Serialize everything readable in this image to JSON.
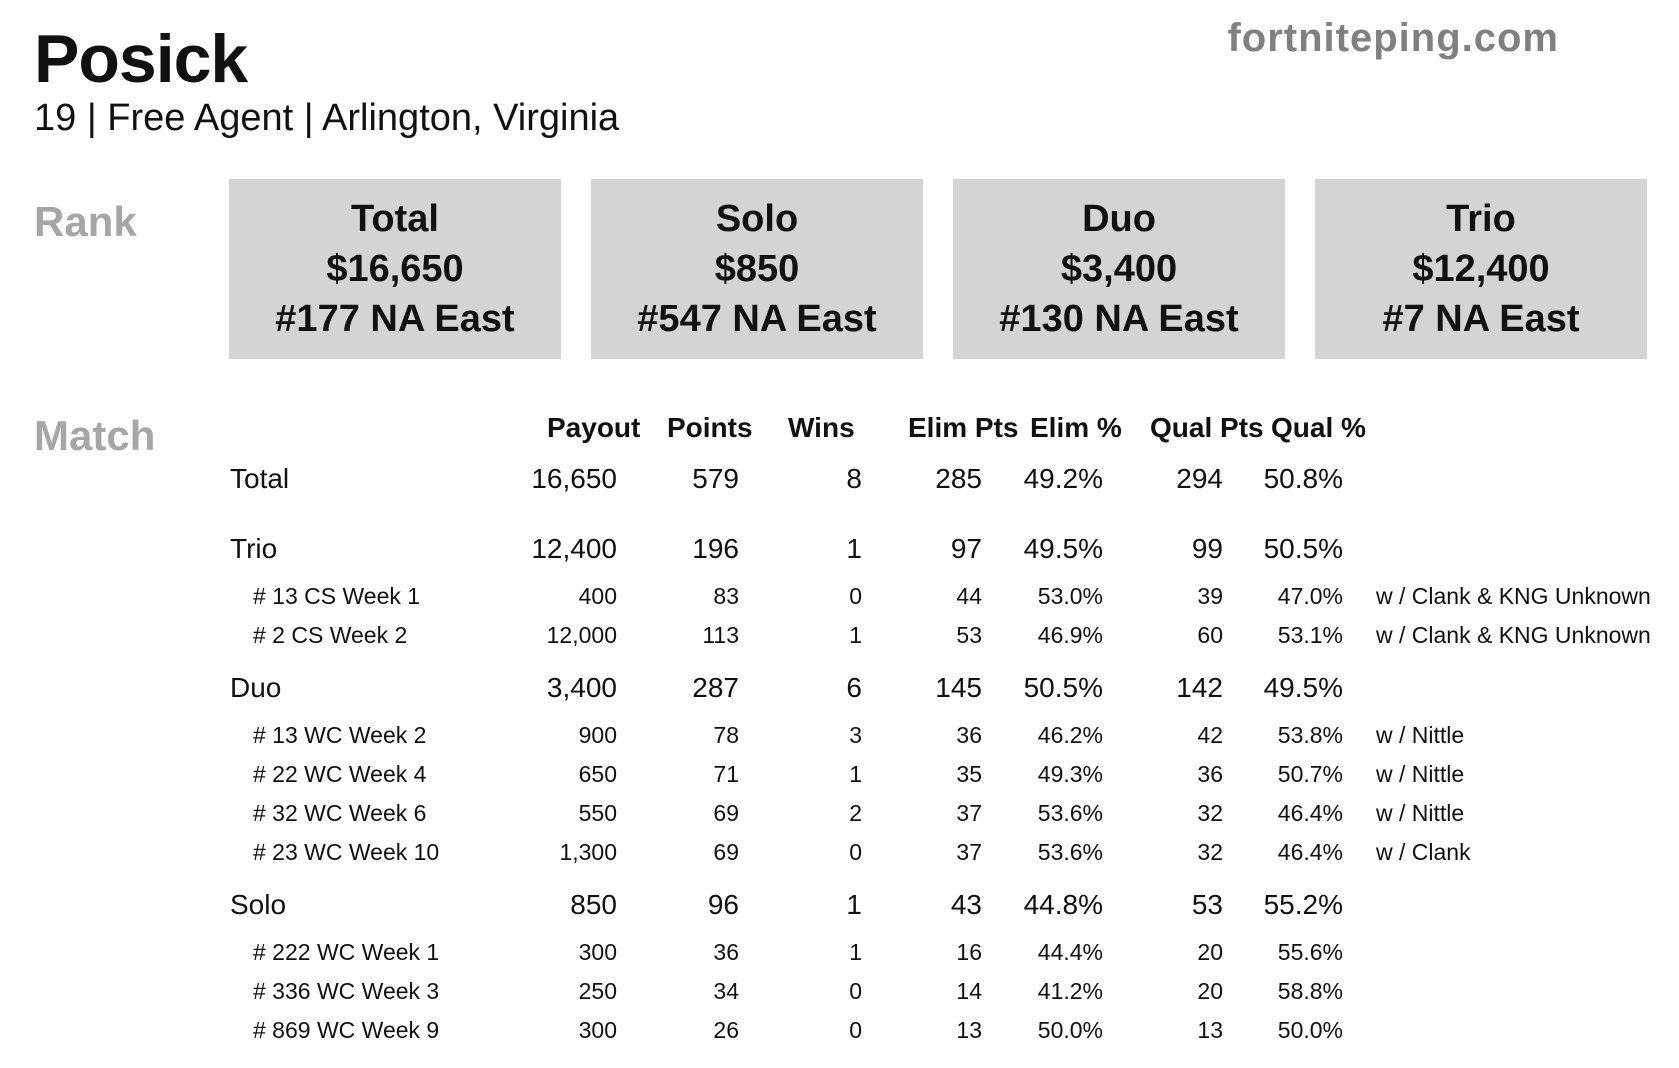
{
  "header": {
    "player_name": "Posick",
    "subtitle": "19 | Free Agent | Arlington, Virginia",
    "site": "fortniteping.com"
  },
  "sections": {
    "rank_label": "Rank",
    "match_label": "Match"
  },
  "rank_cards": [
    {
      "mode": "Total",
      "earnings": "$16,650",
      "rank": "#177 NA East"
    },
    {
      "mode": "Solo",
      "earnings": "$850",
      "rank": "#547 NA East"
    },
    {
      "mode": "Duo",
      "earnings": "$3,400",
      "rank": "#130 NA East"
    },
    {
      "mode": "Trio",
      "earnings": "$12,400",
      "rank": "#7 NA East"
    }
  ],
  "match_table": {
    "headers": {
      "payout": "Payout",
      "points": "Points",
      "wins": "Wins",
      "elim_pts": "Elim Pts",
      "elim_pct": "Elim %",
      "qual_pts": "Qual Pts",
      "qual_pct": "Qual %"
    },
    "rows": [
      {
        "label": "Total",
        "payout": "16,650",
        "points": "579",
        "wins": "8",
        "elim_pts": "285",
        "elim_pct": "49.2%",
        "qual_pts": "294",
        "qual_pct": "50.8%",
        "partner": ""
      },
      {
        "label": "Trio",
        "payout": "12,400",
        "points": "196",
        "wins": "1",
        "elim_pts": "97",
        "elim_pct": "49.5%",
        "qual_pts": "99",
        "qual_pct": "50.5%",
        "partner": ""
      },
      {
        "label": "# 13 CS Week 1",
        "payout": "400",
        "points": "83",
        "wins": "0",
        "elim_pts": "44",
        "elim_pct": "53.0%",
        "qual_pts": "39",
        "qual_pct": "47.0%",
        "partner": "w / Clank & KNG Unknown"
      },
      {
        "label": "# 2 CS Week 2",
        "payout": "12,000",
        "points": "113",
        "wins": "1",
        "elim_pts": "53",
        "elim_pct": "46.9%",
        "qual_pts": "60",
        "qual_pct": "53.1%",
        "partner": "w / Clank & KNG Unknown"
      },
      {
        "label": "Duo",
        "payout": "3,400",
        "points": "287",
        "wins": "6",
        "elim_pts": "145",
        "elim_pct": "50.5%",
        "qual_pts": "142",
        "qual_pct": "49.5%",
        "partner": ""
      },
      {
        "label": "# 13 WC Week 2",
        "payout": "900",
        "points": "78",
        "wins": "3",
        "elim_pts": "36",
        "elim_pct": "46.2%",
        "qual_pts": "42",
        "qual_pct": "53.8%",
        "partner": "w / Nittle"
      },
      {
        "label": "# 22 WC Week 4",
        "payout": "650",
        "points": "71",
        "wins": "1",
        "elim_pts": "35",
        "elim_pct": "49.3%",
        "qual_pts": "36",
        "qual_pct": "50.7%",
        "partner": "w / Nittle"
      },
      {
        "label": "# 32 WC Week 6",
        "payout": "550",
        "points": "69",
        "wins": "2",
        "elim_pts": "37",
        "elim_pct": "53.6%",
        "qual_pts": "32",
        "qual_pct": "46.4%",
        "partner": "w / Nittle"
      },
      {
        "label": "# 23 WC Week 10",
        "payout": "1,300",
        "points": "69",
        "wins": "0",
        "elim_pts": "37",
        "elim_pct": "53.6%",
        "qual_pts": "32",
        "qual_pct": "46.4%",
        "partner": "w / Clank"
      },
      {
        "label": "Solo",
        "payout": "850",
        "points": "96",
        "wins": "1",
        "elim_pts": "43",
        "elim_pct": "44.8%",
        "qual_pts": "53",
        "qual_pct": "55.2%",
        "partner": ""
      },
      {
        "label": "# 222 WC Week 1",
        "payout": "300",
        "points": "36",
        "wins": "1",
        "elim_pts": "16",
        "elim_pct": "44.4%",
        "qual_pts": "20",
        "qual_pct": "55.6%",
        "partner": ""
      },
      {
        "label": "# 336 WC Week 3",
        "payout": "250",
        "points": "34",
        "wins": "0",
        "elim_pts": "14",
        "elim_pct": "41.2%",
        "qual_pts": "20",
        "qual_pct": "58.8%",
        "partner": ""
      },
      {
        "label": "# 869 WC Week 9",
        "payout": "300",
        "points": "26",
        "wins": "0",
        "elim_pts": "13",
        "elim_pct": "50.0%",
        "qual_pts": "13",
        "qual_pct": "50.0%",
        "partner": ""
      }
    ]
  }
}
